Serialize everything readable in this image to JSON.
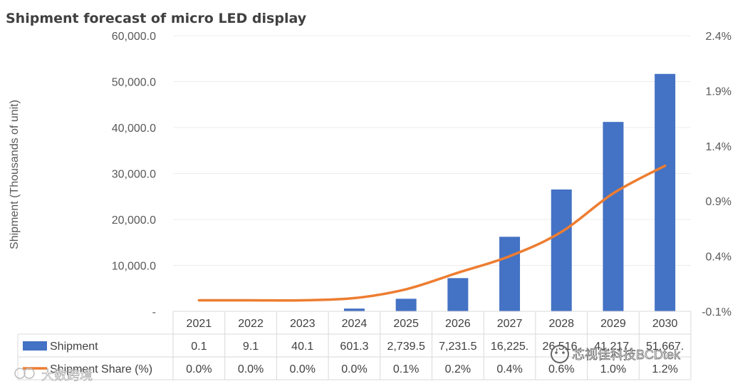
{
  "chart_data": {
    "type": "bar",
    "title": "Shipment forecast of micro LED display",
    "ylabel": "Shipment (Thousands of unit)",
    "categories": [
      "2021",
      "2022",
      "2023",
      "2024",
      "2025",
      "2026",
      "2027",
      "2028",
      "2029",
      "2030"
    ],
    "ylim": [
      0,
      60000
    ],
    "y2lim": [
      -0.1,
      2.4
    ],
    "y_ticks": [
      "60,000.0",
      "50,000.0",
      "40,000.0",
      "30,000.0",
      "20,000.0",
      "10,000.0",
      "-"
    ],
    "y_tick_values": [
      60000,
      50000,
      40000,
      30000,
      20000,
      10000,
      0
    ],
    "y2_ticks": [
      "2.4%",
      "1.9%",
      "1.4%",
      "0.9%",
      "0.4%",
      "-0.1%"
    ],
    "y2_tick_values": [
      2.4,
      1.9,
      1.4,
      0.9,
      0.4,
      -0.1
    ],
    "series": [
      {
        "name": "Shipment",
        "type": "bar",
        "color": "#4472C4",
        "values": [
          0.1,
          9.1,
          40.1,
          601.3,
          2739.5,
          7231.5,
          16225,
          26516,
          41217,
          51667
        ],
        "labels": [
          "0.1",
          "9.1",
          "40.1",
          "601.3",
          "2,739.5",
          "7,231.5",
          "16,225.",
          "26,516.",
          "41,217.",
          "51,667."
        ]
      },
      {
        "name": "Shipment Share (%)",
        "type": "line",
        "axis": "right",
        "color": "#ED7D31",
        "values": [
          0.0,
          0.0,
          0.0,
          0.02,
          0.1,
          0.25,
          0.4,
          0.62,
          0.97,
          1.22
        ],
        "labels": [
          "0.0%",
          "0.0%",
          "0.0%",
          "0.0%",
          "0.1%",
          "0.2%",
          "0.4%",
          "0.6%",
          "1.0%",
          "1.2%"
        ]
      }
    ],
    "table": true,
    "legend": "in-table"
  },
  "watermarks": {
    "bottom_left": "大数跨境",
    "bottom_right": "芯视佳科技BCDtek"
  }
}
